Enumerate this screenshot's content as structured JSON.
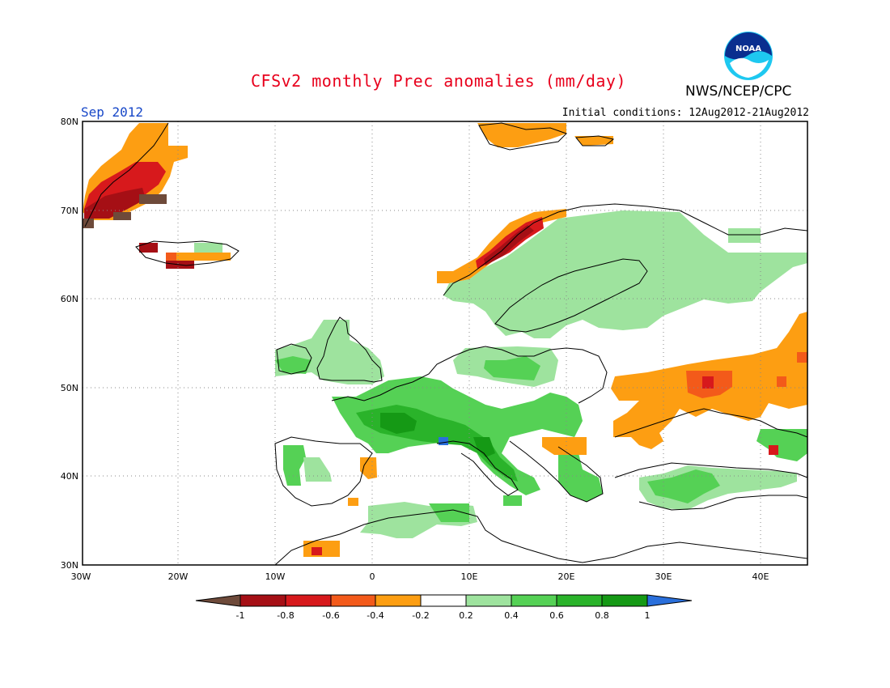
{
  "header": {
    "title": "CFSv2 monthly Prec anomalies (mm/day)",
    "org": "NWS/NCEP/CPC",
    "month": "Sep 2012",
    "initial_conditions": "Initial conditions: 12Aug2012-21Aug2012",
    "logo_text": "NOAA"
  },
  "map": {
    "lat_labels": [
      "80N",
      "70N",
      "60N",
      "50N",
      "40N",
      "30N"
    ],
    "lon_labels": [
      "30W",
      "20W",
      "10W",
      "0",
      "10E",
      "20E",
      "30E",
      "40E"
    ],
    "lat_range": [
      30,
      80
    ],
    "lon_range": [
      -30,
      45
    ],
    "grid": "dotted"
  },
  "legend": {
    "ticks": [
      "-1",
      "-0.8",
      "-0.6",
      "-0.4",
      "-0.2",
      "0.2",
      "0.4",
      "0.6",
      "0.8",
      "1"
    ],
    "colors": {
      "below_min": "#6e4a3a",
      "-1_-0.8": "#a50f15",
      "-0.8_-0.6": "#d7191c",
      "-0.6_-0.4": "#f35a1a",
      "-0.4_-0.2": "#fd9e12",
      "-0.2_0.2": "#ffffff",
      "0.2_0.4": "#9ee39e",
      "0.4_0.6": "#55d155",
      "0.6_0.8": "#2ab32a",
      "0.8_1": "#159915",
      "above_max": "#2a6fdb"
    }
  }
}
